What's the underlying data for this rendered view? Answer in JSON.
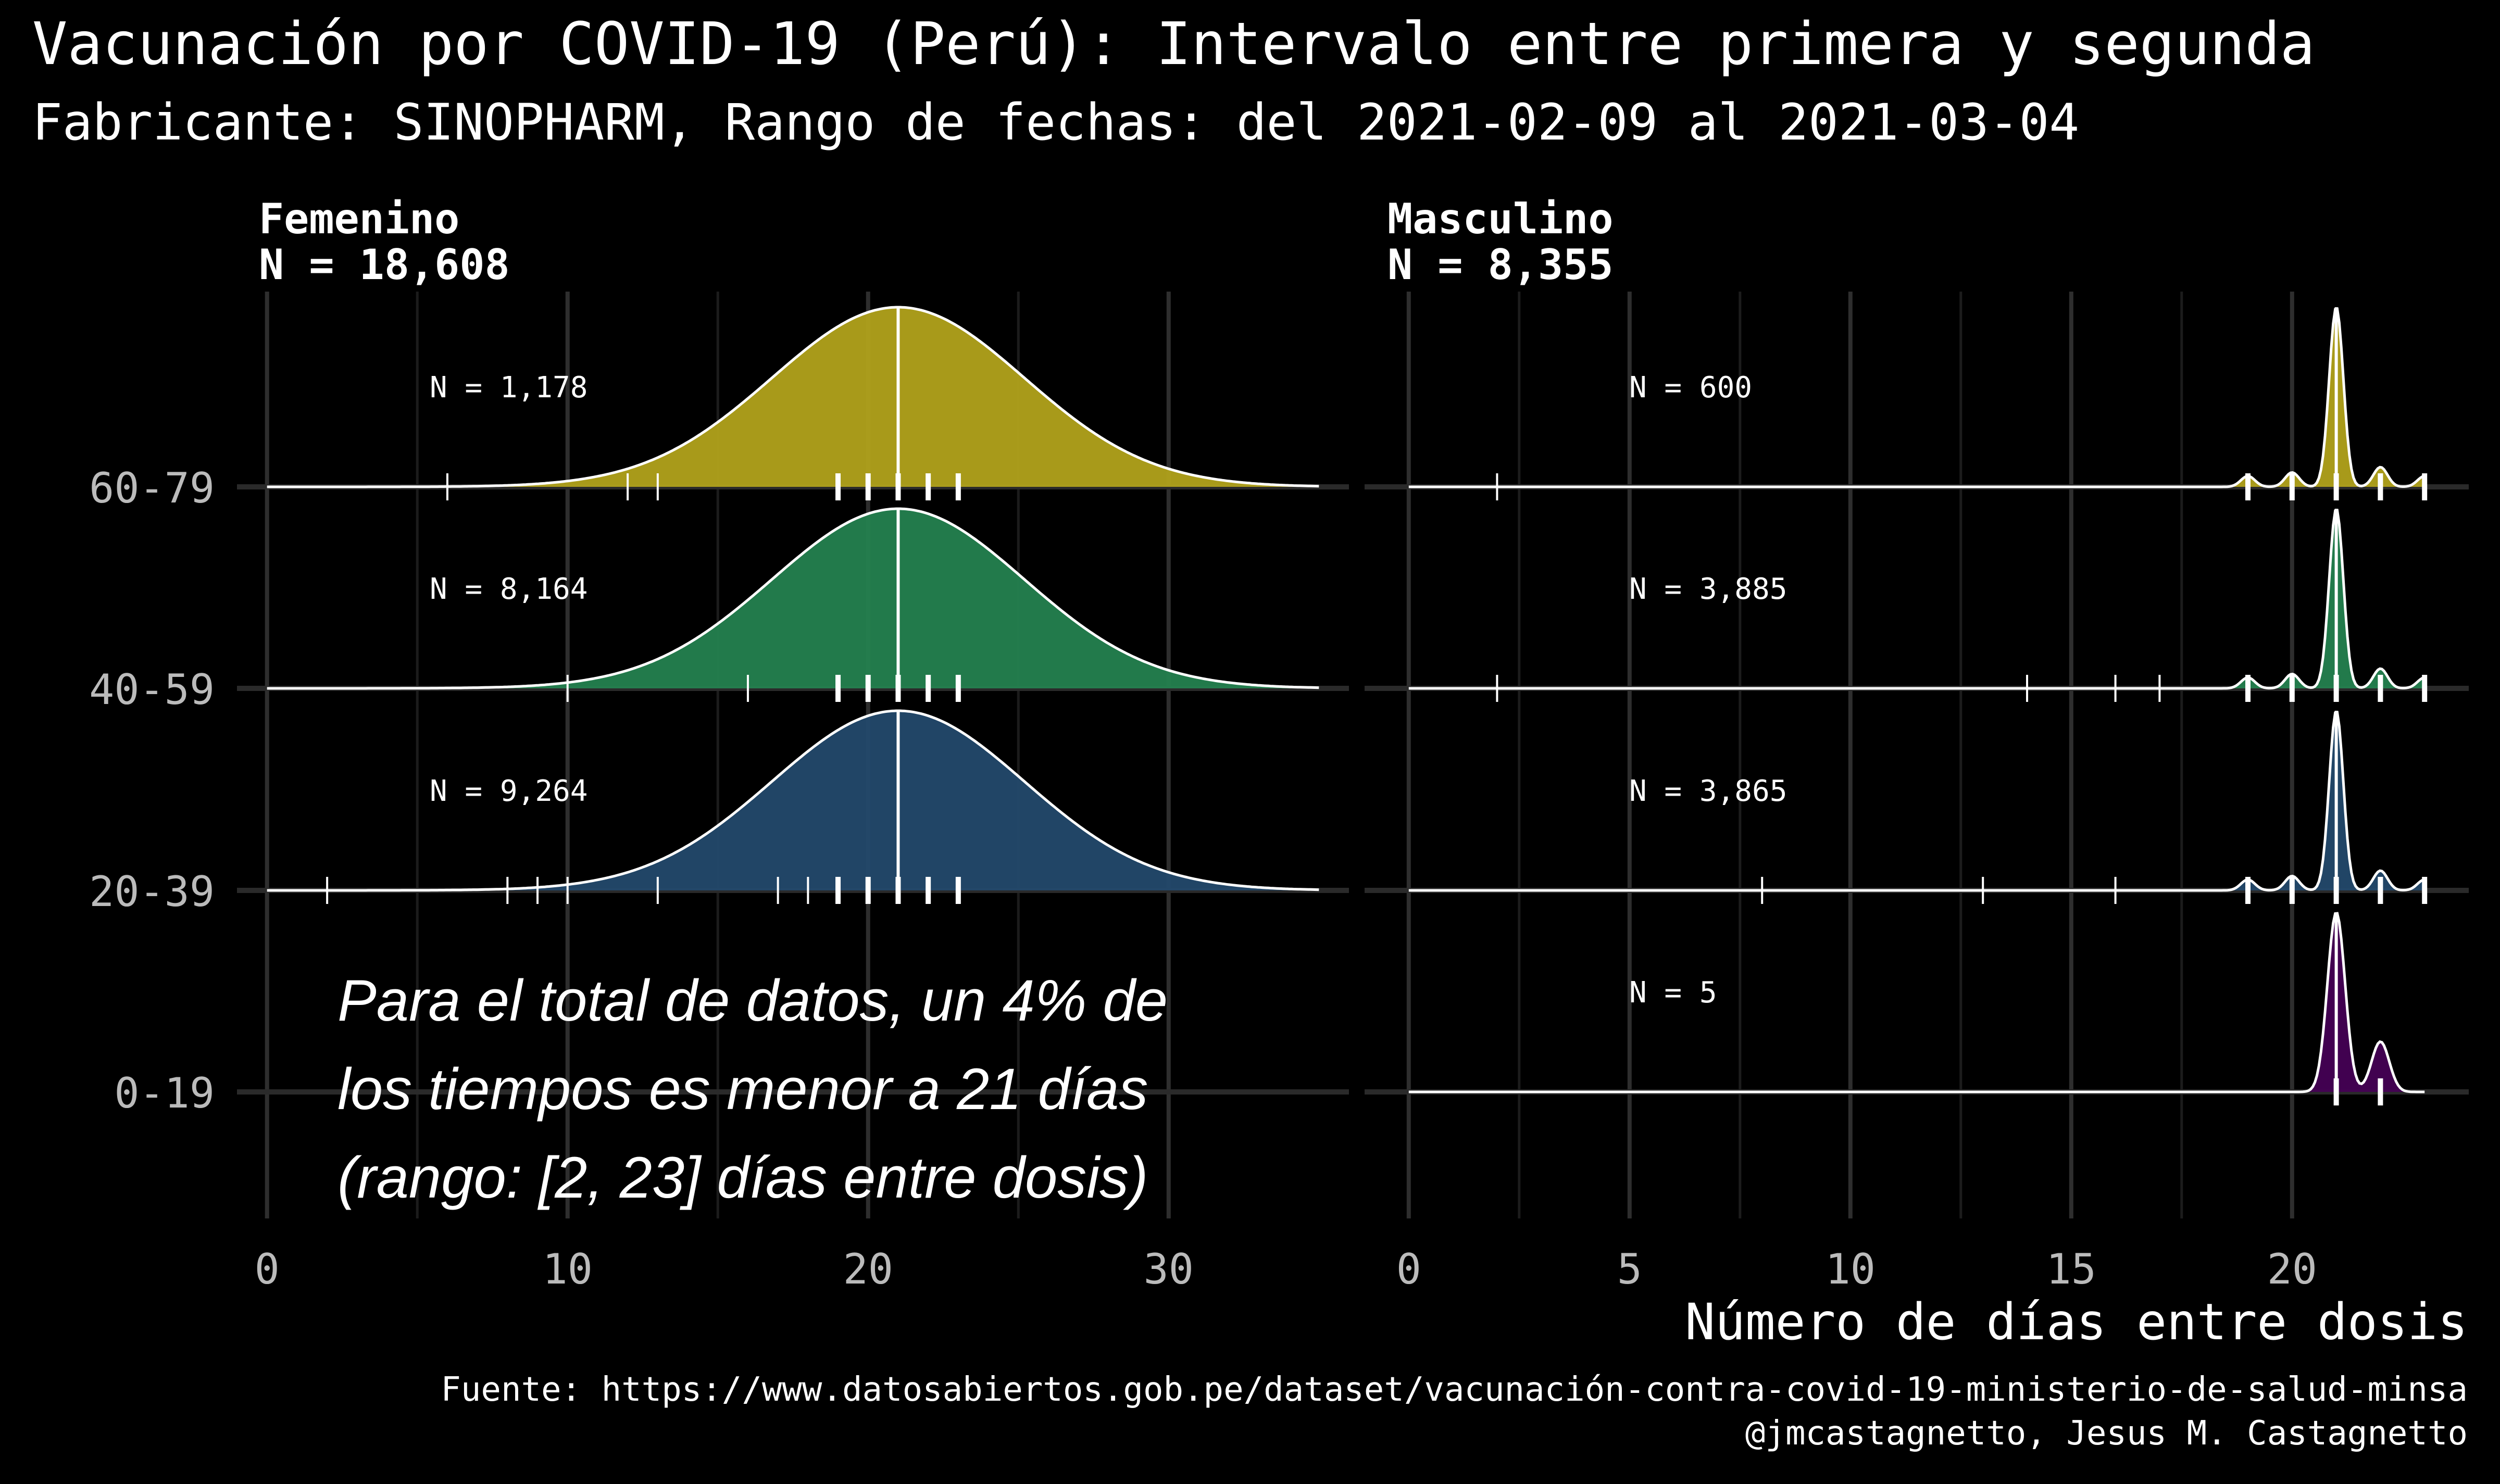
{
  "title": "Vacunación por COVID-19 (Perú): Intervalo entre primera y segunda",
  "subtitle": "Fabricante: SINOPHARM, Rango de fechas: del 2021-02-09 al 2021-03-04",
  "xlabel": "Número de días entre dosis",
  "caption_source": "Fuente: https://www.datosabiertos.gob.pe/dataset/vacunación-contra-covid-19-ministerio-de-salud-minsa",
  "caption_author": "@jmcastagnetto, Jesus M. Castagnetto",
  "annotation": {
    "lines": [
      "Para el total de datos, un 4% de",
      "los tiempos es menor a 21 días",
      "(rango: [2, 23] días entre dosis)"
    ]
  },
  "colors": {
    "background": "#000000",
    "0-19": "#440154",
    "20-39": "#23496b",
    "40-59": "#24814f",
    "60-79": "#b1a21b",
    "grid": "#2a2a2a",
    "text": "#ffffff",
    "axis_text": "#bbbbbb"
  },
  "chart_data": {
    "type": "ridgeline",
    "age_groups": [
      "0-19",
      "20-39",
      "40-59",
      "60-79"
    ],
    "median_days": 21,
    "panels": [
      {
        "name": "Femenino",
        "label_n": "N = 18,608",
        "xlim": [
          -1,
          36
        ],
        "xticks": [
          0,
          10,
          20,
          30
        ],
        "tick_labels": [
          "0",
          "10",
          "20",
          "30"
        ],
        "groups": [
          {
            "age": "60-79",
            "label_n": "N = 1,178",
            "density": {
              "kind": "gaussian",
              "mean": 21,
              "sd": 4.2
            },
            "rug": [
              6,
              12,
              13,
              19,
              20,
              21,
              22,
              23
            ],
            "rug_major": [
              19,
              20,
              21,
              22,
              23
            ]
          },
          {
            "age": "40-59",
            "label_n": "N = 8,164",
            "density": {
              "kind": "gaussian",
              "mean": 21,
              "sd": 4.2
            },
            "rug": [
              10,
              16,
              19,
              20,
              21,
              22,
              23
            ],
            "rug_major": [
              19,
              20,
              21,
              22,
              23
            ]
          },
          {
            "age": "20-39",
            "label_n": "N = 9,264",
            "density": {
              "kind": "gaussian",
              "mean": 21,
              "sd": 4.2
            },
            "rug": [
              2,
              8,
              9,
              10,
              13,
              17,
              18,
              19,
              20,
              21,
              22,
              23
            ],
            "rug_major": [
              19,
              20,
              21,
              22,
              23
            ]
          }
        ]
      },
      {
        "name": "Masculino",
        "label_n": "N = 8,355",
        "xlim": [
          -1,
          24
        ],
        "xticks": [
          0,
          5,
          10,
          15,
          20
        ],
        "tick_labels": [
          "0",
          "5",
          "10",
          "15",
          "20"
        ],
        "groups": [
          {
            "age": "60-79",
            "label_n": "N = 600",
            "density": {
              "kind": "peaks",
              "peaks": [
                [
                  21,
                  1.0,
                  0.16
                ],
                [
                  19,
                  0.06,
                  0.16
                ],
                [
                  20,
                  0.08,
                  0.16
                ],
                [
                  22,
                  0.11,
                  0.16
                ],
                [
                  23,
                  0.06,
                  0.16
                ]
              ]
            },
            "rug": [
              2,
              19,
              20,
              21,
              22,
              23
            ],
            "rug_major": [
              19,
              20,
              21,
              22,
              23
            ]
          },
          {
            "age": "40-59",
            "label_n": "N = 3,885",
            "density": {
              "kind": "peaks",
              "peaks": [
                [
                  21,
                  1.0,
                  0.16
                ],
                [
                  19,
                  0.06,
                  0.16
                ],
                [
                  20,
                  0.08,
                  0.16
                ],
                [
                  22,
                  0.11,
                  0.16
                ],
                [
                  23,
                  0.06,
                  0.16
                ]
              ]
            },
            "rug": [
              2,
              14,
              16,
              17,
              19,
              20,
              21,
              22,
              23
            ],
            "rug_major": [
              19,
              20,
              21,
              22,
              23
            ]
          },
          {
            "age": "20-39",
            "label_n": "N = 3,865",
            "density": {
              "kind": "peaks",
              "peaks": [
                [
                  21,
                  1.0,
                  0.16
                ],
                [
                  19,
                  0.06,
                  0.16
                ],
                [
                  20,
                  0.08,
                  0.16
                ],
                [
                  22,
                  0.11,
                  0.16
                ],
                [
                  23,
                  0.06,
                  0.16
                ]
              ]
            },
            "rug": [
              8,
              13,
              16,
              19,
              20,
              21,
              22,
              23
            ],
            "rug_major": [
              19,
              20,
              21,
              22,
              23
            ]
          },
          {
            "age": "0-19",
            "label_n": "N = 5",
            "density": {
              "kind": "peaks",
              "peaks": [
                [
                  21,
                  1.0,
                  0.2
                ],
                [
                  22,
                  0.28,
                  0.2
                ]
              ]
            },
            "rug": [
              21,
              22
            ],
            "rug_major": [
              21,
              22
            ]
          }
        ]
      }
    ]
  }
}
